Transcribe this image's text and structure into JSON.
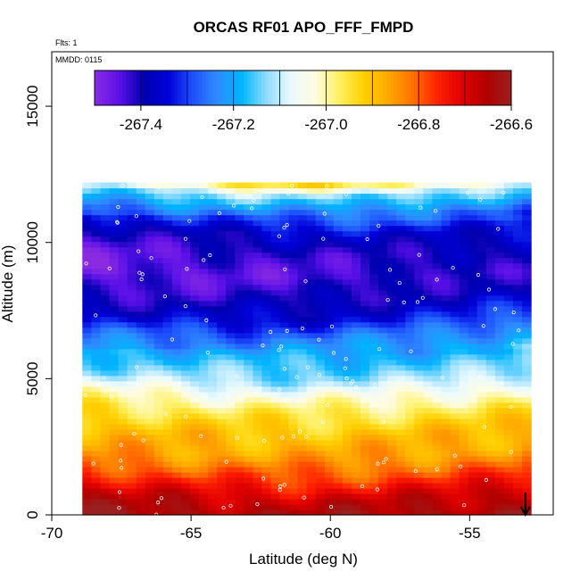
{
  "chart_data": {
    "type": "heatmap",
    "title": "ORCAS RF01 APO_FFF_FMPD",
    "subtitle_flts": "Flts: 1",
    "subtitle_mmdd": "MMDD: 0115",
    "xlabel": "Latitude (deg N)",
    "ylabel": "Altitude (m)",
    "xlim": [
      -70,
      -52
    ],
    "ylim": [
      0,
      17000
    ],
    "x_ticks": [
      -70,
      -65,
      -60,
      -55
    ],
    "x_tick_labels": [
      "-70",
      "-65",
      "-60",
      "-55"
    ],
    "y_ticks": [
      0,
      5000,
      10000,
      15000
    ],
    "y_tick_labels": [
      "0",
      "5000",
      "10000",
      "15000"
    ],
    "colorbar": {
      "min": -267.5,
      "max": -266.6,
      "ticks": [
        -267.4,
        -267.2,
        -267.0,
        -266.8,
        -266.6
      ],
      "tick_labels": [
        "-267.4",
        "-267.2",
        "-267.0",
        "-266.8",
        "-266.6"
      ],
      "colors": [
        "#8a2be2",
        "#5a10e8",
        "#0000b0",
        "#0000d8",
        "#1e50ff",
        "#2f8cff",
        "#00b4ff",
        "#8fdcff",
        "#eafaff",
        "#fffce0",
        "#fff060",
        "#ffd000",
        "#ffa800",
        "#ff7000",
        "#ff2000",
        "#e00000",
        "#b00000",
        "#9a2020"
      ]
    },
    "profile": [
      {
        "alt": 0,
        "value": -266.62
      },
      {
        "alt": 800,
        "value": -266.68
      },
      {
        "alt": 1600,
        "value": -266.78
      },
      {
        "alt": 2400,
        "value": -266.86
      },
      {
        "alt": 3200,
        "value": -266.9
      },
      {
        "alt": 4000,
        "value": -266.96
      },
      {
        "alt": 4600,
        "value": -267.03
      },
      {
        "alt": 5200,
        "value": -267.12
      },
      {
        "alt": 6000,
        "value": -267.18
      },
      {
        "alt": 6800,
        "value": -267.26
      },
      {
        "alt": 7400,
        "value": -267.34
      },
      {
        "alt": 8200,
        "value": -267.4
      },
      {
        "alt": 9000,
        "value": -267.44
      },
      {
        "alt": 9800,
        "value": -267.42
      },
      {
        "alt": 10600,
        "value": -267.36
      },
      {
        "alt": 11300,
        "value": -267.26
      },
      {
        "alt": 12000,
        "value": -267.12
      },
      {
        "alt": 12400,
        "value": -266.95
      }
    ],
    "data_extent": {
      "lat_min": -68.9,
      "lat_max": -52.8,
      "alt_max": 12200
    },
    "marker_lat": -53
  }
}
